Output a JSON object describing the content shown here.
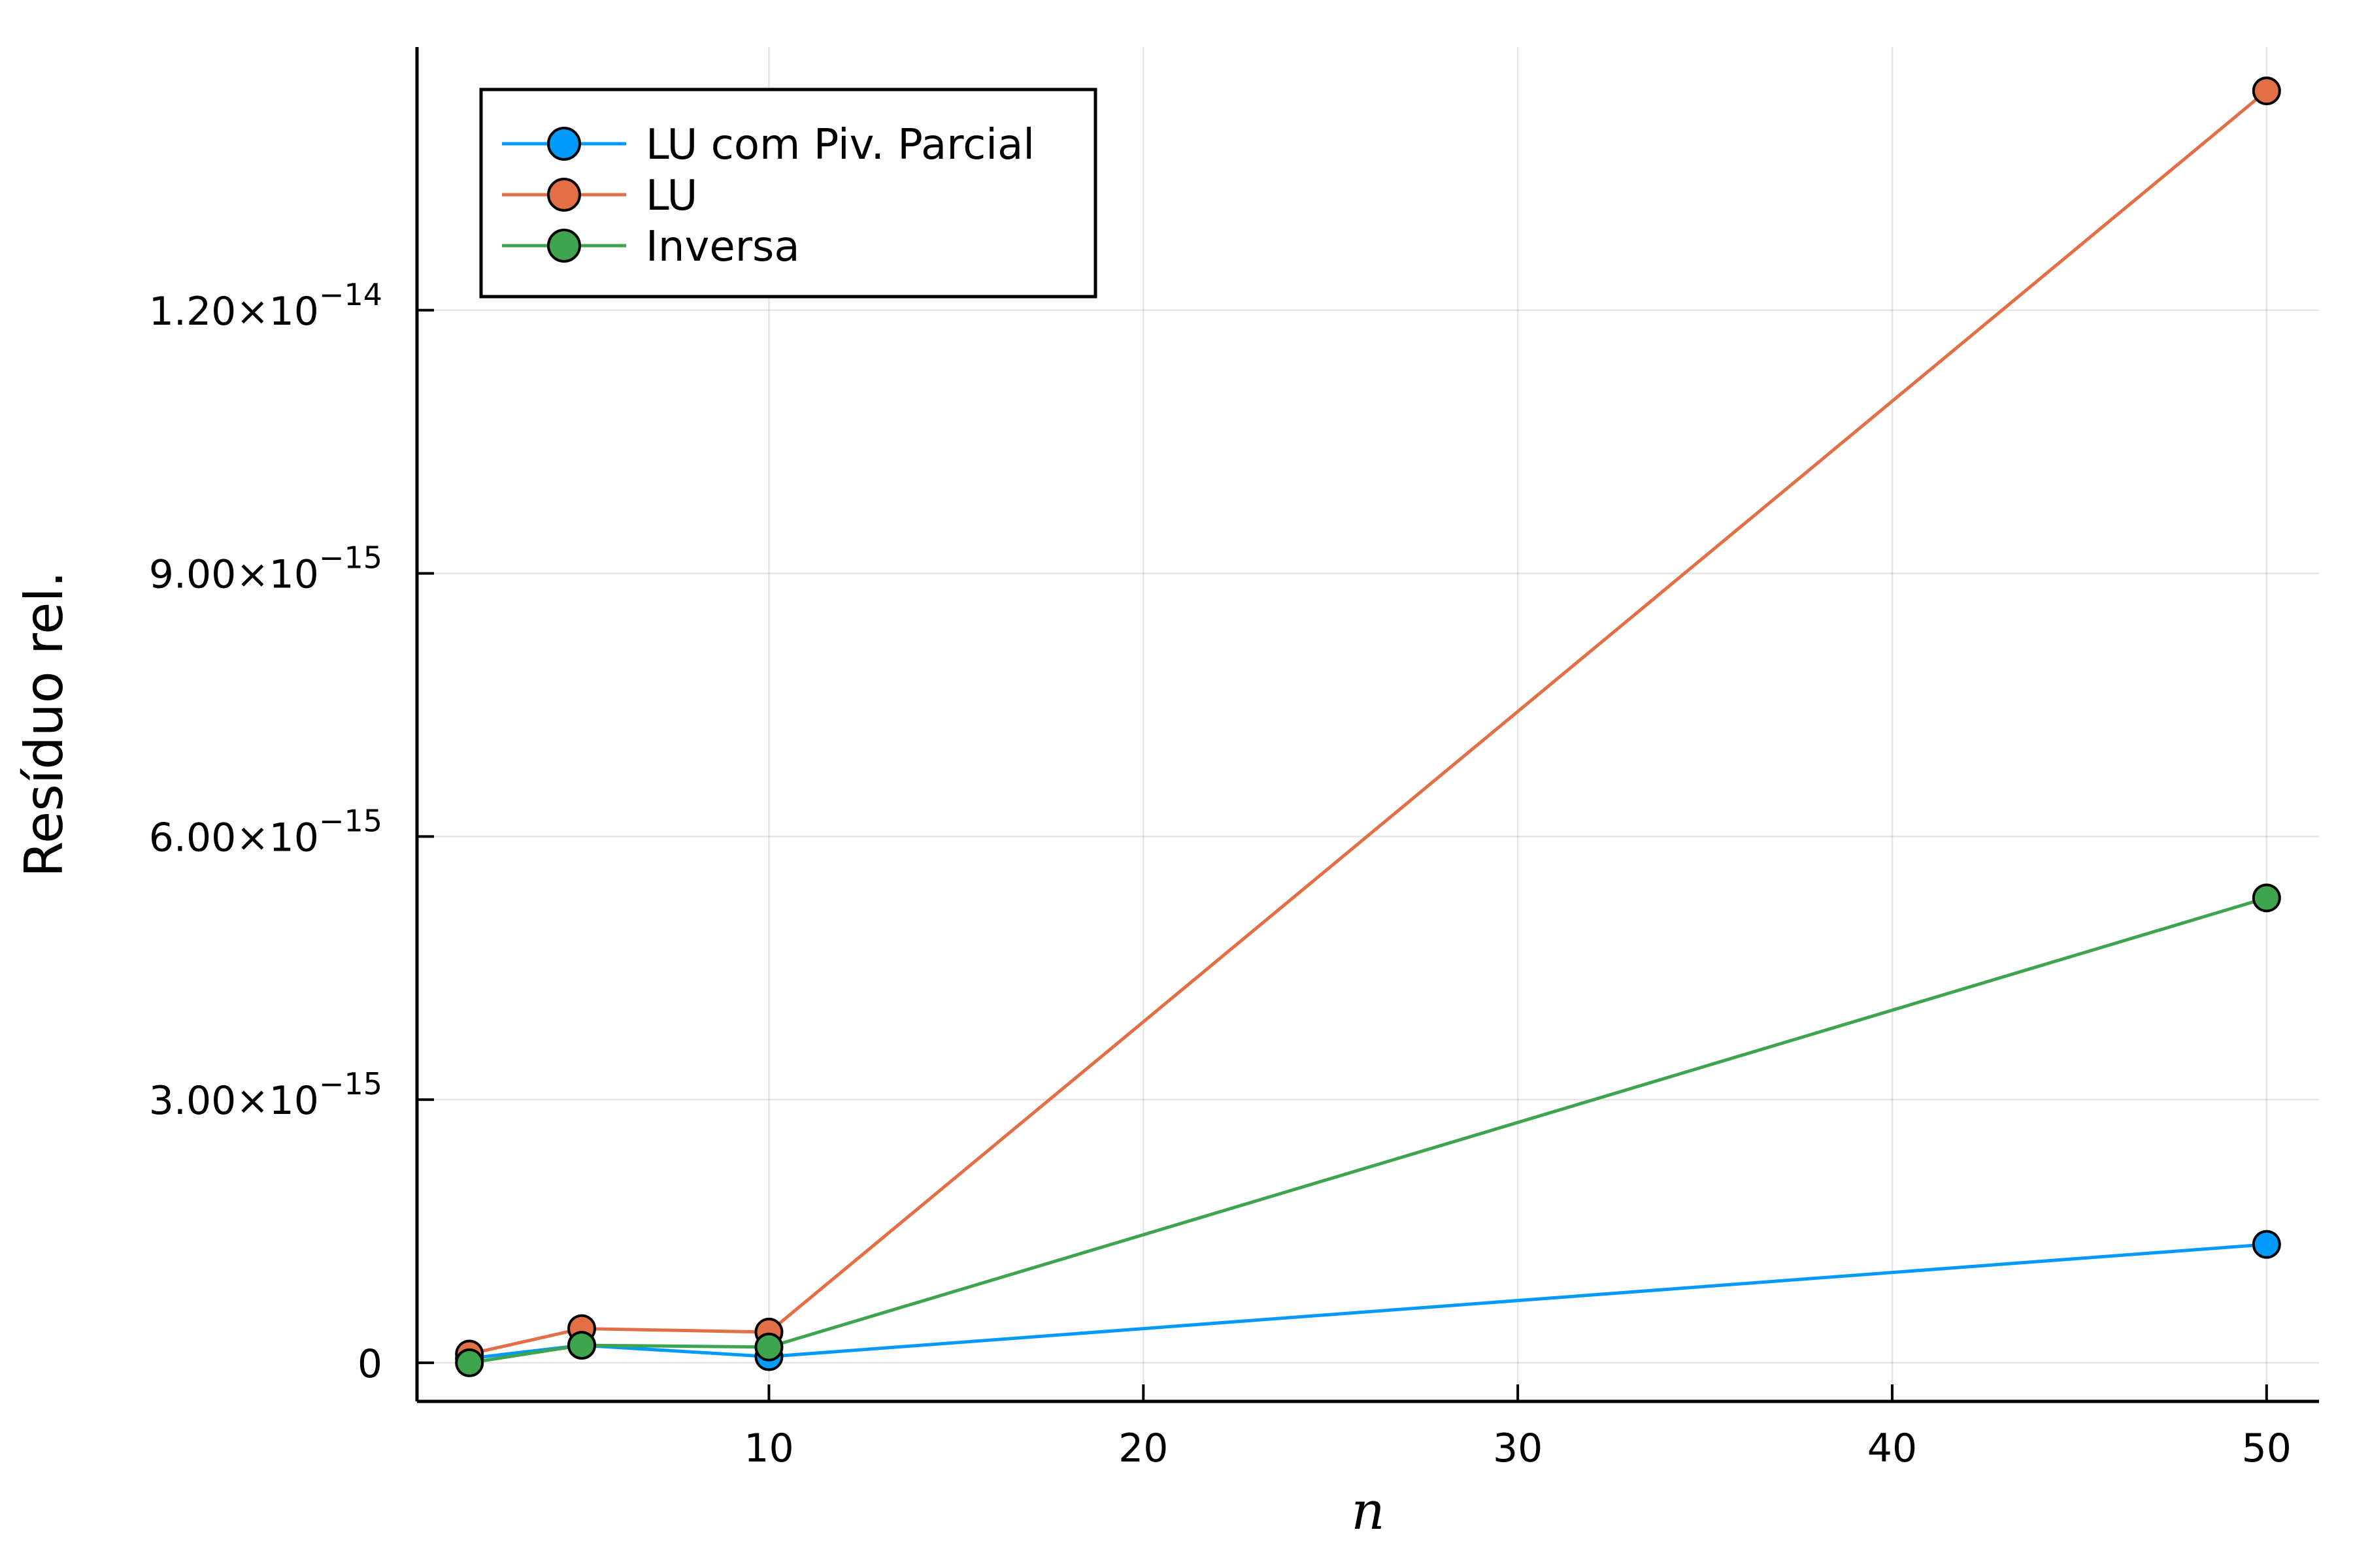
{
  "chart_data": {
    "type": "line",
    "xlabel": "n",
    "ylabel": "Resíduo rel.",
    "xlim": [
      0.6,
      51.4
    ],
    "ylim": [
      -4.4e-16,
      1.5e-14
    ],
    "xticks": [
      {
        "value": 10,
        "label": "10"
      },
      {
        "value": 20,
        "label": "20"
      },
      {
        "value": 30,
        "label": "30"
      },
      {
        "value": 40,
        "label": "40"
      },
      {
        "value": 50,
        "label": "50"
      }
    ],
    "yticks": [
      {
        "value": 0,
        "mantissa": "0",
        "exponent": ""
      },
      {
        "value": 3e-15,
        "mantissa": "3.00×10",
        "exponent": "−15"
      },
      {
        "value": 6e-15,
        "mantissa": "6.00×10",
        "exponent": "−15"
      },
      {
        "value": 9e-15,
        "mantissa": "9.00×10",
        "exponent": "−15"
      },
      {
        "value": 1.2e-14,
        "mantissa": "1.20×10",
        "exponent": "−14"
      }
    ],
    "grid": true,
    "legend_position": "top-left",
    "x": [
      2,
      5,
      10,
      50
    ],
    "series": [
      {
        "name": "LU com Piv. Parcial",
        "color": "#009AFA",
        "values": [
          5e-17,
          2e-16,
          7e-17,
          1.35e-15
        ]
      },
      {
        "name": "LU",
        "color": "#E26F46",
        "values": [
          1e-16,
          3.9e-16,
          3.5e-16,
          1.45e-14
        ]
      },
      {
        "name": "Inversa",
        "color": "#3EA44E",
        "values": [
          0,
          2e-16,
          1.8e-16,
          5.3e-15
        ]
      }
    ]
  }
}
